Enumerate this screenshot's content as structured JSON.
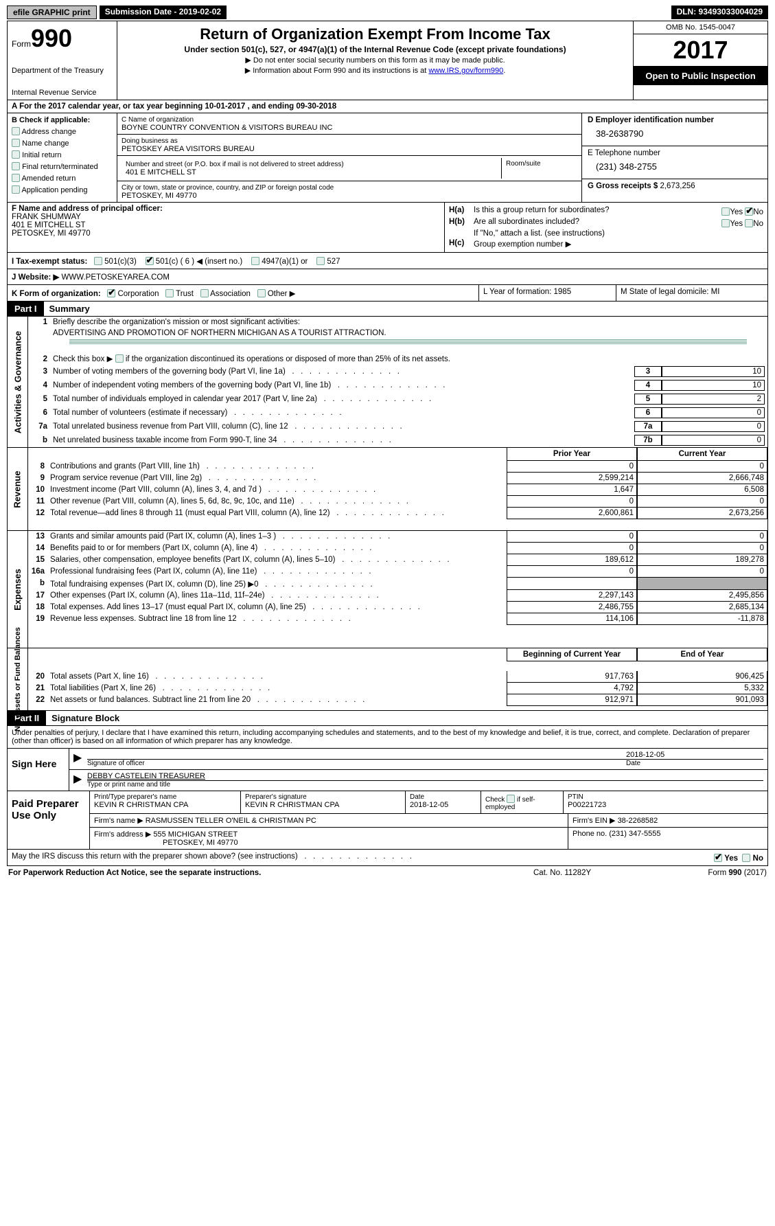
{
  "topbar": {
    "efile": "efile GRAPHIC print",
    "submission_label": "Submission Date - 2019-02-02",
    "dln": "DLN: 93493033004029"
  },
  "header": {
    "form_word": "Form",
    "form_num": "990",
    "dept1": "Department of the Treasury",
    "dept2": "Internal Revenue Service",
    "title": "Return of Organization Exempt From Income Tax",
    "subtitle": "Under section 501(c), 527, or 4947(a)(1) of the Internal Revenue Code (except private foundations)",
    "note1": "▶ Do not enter social security numbers on this form as it may be made public.",
    "note2_pre": "▶ Information about Form 990 and its instructions is at ",
    "note2_link": "www.IRS.gov/form990",
    "omb": "OMB No. 1545-0047",
    "year": "2017",
    "inspect": "Open to Public Inspection"
  },
  "row_a": "A   For the 2017 calendar year, or tax year beginning 10-01-2017   , and ending 09-30-2018",
  "col_b": {
    "hdr": "B Check if applicable:",
    "items": [
      "Address change",
      "Name change",
      "Initial return",
      "Final return/terminated",
      "Amended return",
      "Application pending"
    ]
  },
  "col_c": {
    "name_lbl": "C Name of organization",
    "name": "BOYNE COUNTRY CONVENTION & VISITORS BUREAU INC",
    "dba_lbl": "Doing business as",
    "dba": "PETOSKEY AREA VISITORS BUREAU",
    "addr_lbl": "Number and street (or P.O. box if mail is not delivered to street address)",
    "addr": "401 E MITCHELL ST",
    "room_lbl": "Room/suite",
    "city_lbl": "City or town, state or province, country, and ZIP or foreign postal code",
    "city": "PETOSKEY, MI  49770"
  },
  "col_d": {
    "ein_lbl": "D Employer identification number",
    "ein": "38-2638790",
    "tel_lbl": "E Telephone number",
    "tel": "(231) 348-2755",
    "gross_lbl": "G Gross receipts $ ",
    "gross": "2,673,256"
  },
  "col_f": {
    "hdr": "F  Name and address of principal officer:",
    "name": "FRANK SHUMWAY",
    "addr1": "401 E MITCHELL ST",
    "addr2": "PETOSKEY, MI  49770"
  },
  "col_h": {
    "a": "Is this a group return for subordinates?",
    "b": "Are all subordinates included?",
    "b_note": "If \"No,\" attach a list. (see instructions)",
    "c": "Group exemption number ▶"
  },
  "row_i": {
    "lbl": "I   Tax-exempt status:",
    "o1": "501(c)(3)",
    "o2": "501(c) ( 6 ) ◀ (insert no.)",
    "o3": "4947(a)(1) or",
    "o4": "527"
  },
  "row_j": {
    "lbl": "J   Website: ▶",
    "val": " WWW.PETOSKEYAREA.COM"
  },
  "row_k": {
    "lbl": "K Form of organization:",
    "opts": [
      "Corporation",
      "Trust",
      "Association",
      "Other ▶"
    ],
    "l": "L Year of formation: 1985",
    "m": "M State of legal domicile: MI"
  },
  "part1": {
    "hdr": "Part I",
    "title": "Summary"
  },
  "sec1": {
    "tab": "Activities & Governance",
    "l1": "Briefly describe the organization's mission or most significant activities:",
    "l1v": "ADVERTISING AND PROMOTION OF NORTHERN MICHIGAN AS A TOURIST ATTRACTION.",
    "l2_pre": "Check this box ▶",
    "l2_post": " if the organization discontinued its operations or disposed of more than 25% of its net assets.",
    "rows": [
      {
        "n": "3",
        "d": "Number of voting members of the governing body (Part VI, line 1a)",
        "b": "3",
        "v": "10"
      },
      {
        "n": "4",
        "d": "Number of independent voting members of the governing body (Part VI, line 1b)",
        "b": "4",
        "v": "10"
      },
      {
        "n": "5",
        "d": "Total number of individuals employed in calendar year 2017 (Part V, line 2a)",
        "b": "5",
        "v": "2"
      },
      {
        "n": "6",
        "d": "Total number of volunteers (estimate if necessary)",
        "b": "6",
        "v": "0"
      },
      {
        "n": "7a",
        "d": "Total unrelated business revenue from Part VIII, column (C), line 12",
        "b": "7a",
        "v": "0"
      },
      {
        "n": "b",
        "d": "Net unrelated business taxable income from Form 990-T, line 34",
        "b": "7b",
        "v": "0"
      }
    ]
  },
  "sec2": {
    "hdr_prior": "Prior Year",
    "hdr_curr": "Current Year",
    "revenue_tab": "Revenue",
    "revenue": [
      {
        "n": "8",
        "d": "Contributions and grants (Part VIII, line 1h)",
        "p": "0",
        "c": "0"
      },
      {
        "n": "9",
        "d": "Program service revenue (Part VIII, line 2g)",
        "p": "2,599,214",
        "c": "2,666,748"
      },
      {
        "n": "10",
        "d": "Investment income (Part VIII, column (A), lines 3, 4, and 7d )",
        "p": "1,647",
        "c": "6,508"
      },
      {
        "n": "11",
        "d": "Other revenue (Part VIII, column (A), lines 5, 6d, 8c, 9c, 10c, and 11e)",
        "p": "0",
        "c": "0"
      },
      {
        "n": "12",
        "d": "Total revenue—add lines 8 through 11 (must equal Part VIII, column (A), line 12)",
        "p": "2,600,861",
        "c": "2,673,256"
      }
    ],
    "expenses_tab": "Expenses",
    "expenses": [
      {
        "n": "13",
        "d": "Grants and similar amounts paid (Part IX, column (A), lines 1–3 )",
        "p": "0",
        "c": "0"
      },
      {
        "n": "14",
        "d": "Benefits paid to or for members (Part IX, column (A), line 4)",
        "p": "0",
        "c": "0"
      },
      {
        "n": "15",
        "d": "Salaries, other compensation, employee benefits (Part IX, column (A), lines 5–10)",
        "p": "189,612",
        "c": "189,278"
      },
      {
        "n": "16a",
        "d": "Professional fundraising fees (Part IX, column (A), line 11e)",
        "p": "0",
        "c": "0"
      },
      {
        "n": "b",
        "d": "Total fundraising expenses (Part IX, column (D), line 25) ▶0",
        "p": "",
        "c": "",
        "gray": true
      },
      {
        "n": "17",
        "d": "Other expenses (Part IX, column (A), lines 11a–11d, 11f–24e)",
        "p": "2,297,143",
        "c": "2,495,856"
      },
      {
        "n": "18",
        "d": "Total expenses. Add lines 13–17 (must equal Part IX, column (A), line 25)",
        "p": "2,486,755",
        "c": "2,685,134"
      },
      {
        "n": "19",
        "d": "Revenue less expenses. Subtract line 18 from line 12",
        "p": "114,106",
        "c": "-11,878"
      }
    ],
    "net_tab": "Net Assets or Fund Balances",
    "hdr_boy": "Beginning of Current Year",
    "hdr_eoy": "End of Year",
    "net": [
      {
        "n": "20",
        "d": "Total assets (Part X, line 16)",
        "p": "917,763",
        "c": "906,425"
      },
      {
        "n": "21",
        "d": "Total liabilities (Part X, line 26)",
        "p": "4,792",
        "c": "5,332"
      },
      {
        "n": "22",
        "d": "Net assets or fund balances. Subtract line 21 from line 20",
        "p": "912,971",
        "c": "901,093"
      }
    ]
  },
  "part2": {
    "hdr": "Part II",
    "title": "Signature Block"
  },
  "sig": {
    "decl": "Under penalties of perjury, I declare that I have examined this return, including accompanying schedules and statements, and to the best of my knowledge and belief, it is true, correct, and complete. Declaration of preparer (other than officer) is based on all information of which preparer has any knowledge.",
    "sign_here": "Sign Here",
    "sig_lbl": "Signature of officer",
    "date_val": "2018-12-05",
    "date_lbl": "Date",
    "name": "DEBBY CASTELEIN TREASURER",
    "name_lbl": "Type or print name and title"
  },
  "prep": {
    "hdr": "Paid Preparer Use Only",
    "name_lbl": "Print/Type preparer's name",
    "name": "KEVIN R CHRISTMAN CPA",
    "sig_lbl": "Preparer's signature",
    "sig": "KEVIN R CHRISTMAN CPA",
    "date_lbl": "Date",
    "date": "2018-12-05",
    "check_lbl": "Check         if self-employed",
    "ptin_lbl": "PTIN",
    "ptin": "P00221723",
    "firm_name_lbl": "Firm's name     ▶ ",
    "firm_name": "RASMUSSEN TELLER O'NEIL & CHRISTMAN PC",
    "firm_ein_lbl": "Firm's EIN ▶ ",
    "firm_ein": "38-2268582",
    "firm_addr_lbl": "Firm's address ▶ ",
    "firm_addr1": "555 MICHIGAN STREET",
    "firm_addr2": "PETOSKEY, MI  49770",
    "phone_lbl": "Phone no. ",
    "phone": "(231) 347-5555"
  },
  "bottom": {
    "q": "May the IRS discuss this return with the preparer shown above? (see instructions)",
    "yes": "Yes",
    "no": "No"
  },
  "footer": {
    "l": "For Paperwork Reduction Act Notice, see the separate instructions.",
    "m": "Cat. No. 11282Y",
    "r": "Form 990 (2017)"
  }
}
